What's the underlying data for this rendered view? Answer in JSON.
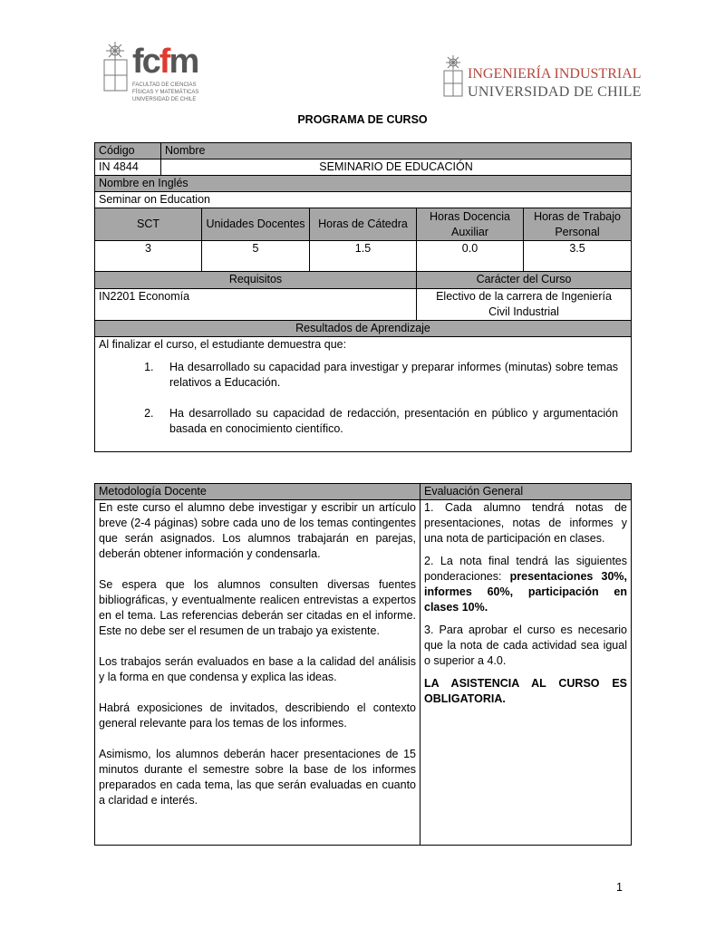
{
  "logos": {
    "left": {
      "mark": "fcfm",
      "caption": [
        "FACULTAD DE CIENCIAS",
        "FÍSICAS Y MATEMÁTICAS",
        "UNIVERSIDAD DE CHILE"
      ],
      "accent": "#e03a2f"
    },
    "right": {
      "line1": "INGENIERÍA INDUSTRIAL",
      "line2": "UNIVERSIDAD DE CHILE",
      "color1": "#b5473a",
      "color2": "#555555"
    }
  },
  "title": "PROGRAMA DE CURSO",
  "course": {
    "code_label": "Código",
    "name_label": "Nombre",
    "code": "IN 4844",
    "name": "SEMINARIO DE EDUCACIÓN",
    "english_label": "Nombre en Inglés",
    "english": "Seminar on Education"
  },
  "hours": {
    "headers": [
      "SCT",
      "Unidades Docentes",
      "Horas de Cátedra",
      "Horas Docencia Auxiliar",
      "Horas de Trabajo Personal"
    ],
    "values": [
      "3",
      "5",
      "1.5",
      "0.0",
      "3.5"
    ]
  },
  "requisitos": {
    "label": "Requisitos",
    "value": "IN2201 Economía",
    "caracter_label": "Carácter del Curso",
    "caracter": "Electivo de la carrera de Ingeniería Civil Industrial"
  },
  "resultados": {
    "label": "Resultados de Aprendizaje",
    "intro": "Al finalizar el curso, el estudiante demuestra que:",
    "items": [
      "Ha desarrollado su capacidad para investigar y preparar informes (minutas) sobre temas relativos a Educación.",
      "Ha desarrollado su capacidad de redacción, presentación en público y argumentación basada en conocimiento científico."
    ]
  },
  "metodologia": {
    "label": "Metodología Docente",
    "paragraphs": [
      "En este curso el alumno debe investigar y escribir un artículo breve (2-4 páginas) sobre cada uno de los temas contingentes que serán asignados. Los alumnos trabajarán en parejas, deberán obtener información y condensarla.",
      "Se espera que los alumnos consulten diversas fuentes bibliográficas, y eventualmente realicen entrevistas a expertos en el tema. Las referencias deberán ser citadas en el informe. Este no debe ser el resumen de un trabajo ya existente.",
      "Los trabajos serán evaluados en base a la calidad del análisis y la forma en que condensa y explica las ideas.",
      "Habrá exposiciones de invitados, describiendo el contexto general relevante para los temas de los informes.",
      "Asimismo, los alumnos deberán hacer presentaciones de 15 minutos durante el semestre sobre la base de los informes preparados en cada tema, las que serán evaluadas en cuanto a claridad e interés."
    ]
  },
  "evaluacion": {
    "label": "Evaluación General",
    "p1": "1. Cada alumno tendrá notas de presentaciones, notas de informes y una nota de participación en clases.",
    "p2_plain": "2. La nota final tendrá las siguientes ponderaciones: ",
    "p2_bold": "presentaciones 30%, informes 60%, participación en clases 10%.",
    "p3": "3. Para aprobar el curso es necesario que la nota de cada actividad sea igual o superior a 4.0.",
    "p4": "LA ASISTENCIA AL CURSO ES OBLIGATORIA."
  },
  "page_number": "1"
}
